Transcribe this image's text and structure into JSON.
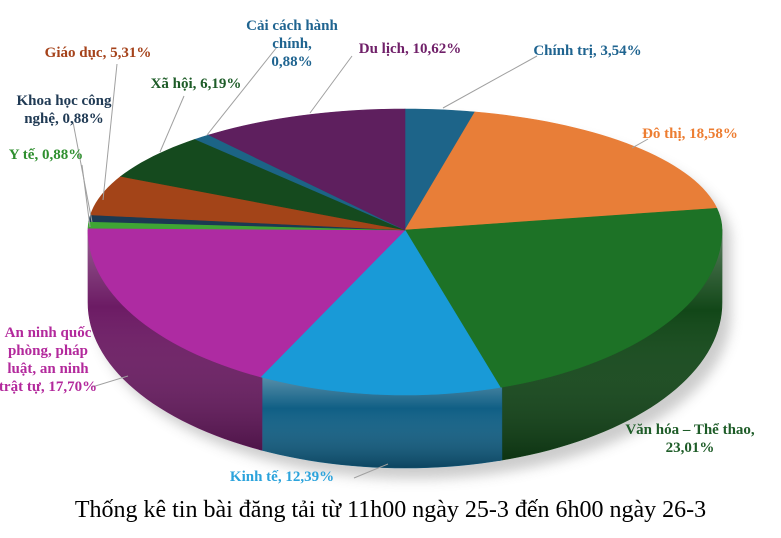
{
  "title": "Thống kê tin bài đăng tải từ 11h00 ngày 25-3 đến 6h00 ngày 26-3",
  "chart_data": {
    "type": "pie",
    "style": "3d",
    "unit": "%",
    "start_angle_deg_from_12_oclock": 0,
    "direction": "clockwise",
    "legend_position": "none",
    "leader_line_color": "#A0A0A0",
    "slices": [
      {
        "id": "chinh-tri",
        "label": "Chính trị",
        "value": 3.54,
        "display_lines": [
          "Chính trị, 3,54%"
        ],
        "color": "#1D6489",
        "label_color": "#1F6490"
      },
      {
        "id": "do-thi",
        "label": "Đô thị",
        "value": 18.58,
        "display_lines": [
          "Đô thị, 18,58%"
        ],
        "color": "#E87E38",
        "label_color": "#ED7D31"
      },
      {
        "id": "van-hoa",
        "label": "Văn hóa – Thể thao",
        "value": 23.01,
        "display_lines": [
          "Văn hóa – Thể thao,",
          "23,01%"
        ],
        "color": "#1D7226",
        "label_color": "#1E5C28"
      },
      {
        "id": "kinh-te",
        "label": "Kinh tế",
        "value": 12.39,
        "display_lines": [
          "Kinh tế, 12,39%"
        ],
        "color": "#199AD7",
        "label_color": "#2BA3DC"
      },
      {
        "id": "an-ninh",
        "label": "An ninh quốc phòng, pháp luật, an ninh trật tự",
        "value": 17.7,
        "display_lines": [
          "An ninh quốc",
          "phòng, pháp",
          "luật, an ninh",
          "trật tự, 17,70%"
        ],
        "color": "#AE2BA2",
        "label_color": "#B3299C"
      },
      {
        "id": "y-te",
        "label": "Y tế",
        "value": 0.88,
        "display_lines": [
          "Y tế, 0,88%"
        ],
        "color": "#3FA534",
        "label_color": "#2F8F2F"
      },
      {
        "id": "khoa-hoc",
        "label": "Khoa học công nghệ",
        "value": 0.88,
        "display_lines": [
          "Khoa học công",
          "nghệ, 0,88%"
        ],
        "color": "#1B3A52",
        "label_color": "#203A54"
      },
      {
        "id": "giao-duc",
        "label": "Giáo dục",
        "value": 5.31,
        "display_lines": [
          "Giáo dục, 5,31%"
        ],
        "color": "#A34418",
        "label_color": "#A5421A"
      },
      {
        "id": "xa-hoi",
        "label": "Xã hội",
        "value": 6.19,
        "display_lines": [
          "Xã hội, 6,19%"
        ],
        "color": "#154A1E",
        "label_color": "#1E5C28"
      },
      {
        "id": "cai-cach",
        "label": "Cải cách hành chính",
        "value": 0.88,
        "display_lines": [
          "Cải cách hành chính,",
          "0,88%"
        ],
        "color": "#1C6486",
        "label_color": "#1F6490"
      },
      {
        "id": "du-lich",
        "label": "Du lịch",
        "value": 10.62,
        "display_lines": [
          "Du lịch, 10,62%"
        ],
        "color": "#5E1F5E",
        "label_color": "#702069"
      }
    ]
  }
}
